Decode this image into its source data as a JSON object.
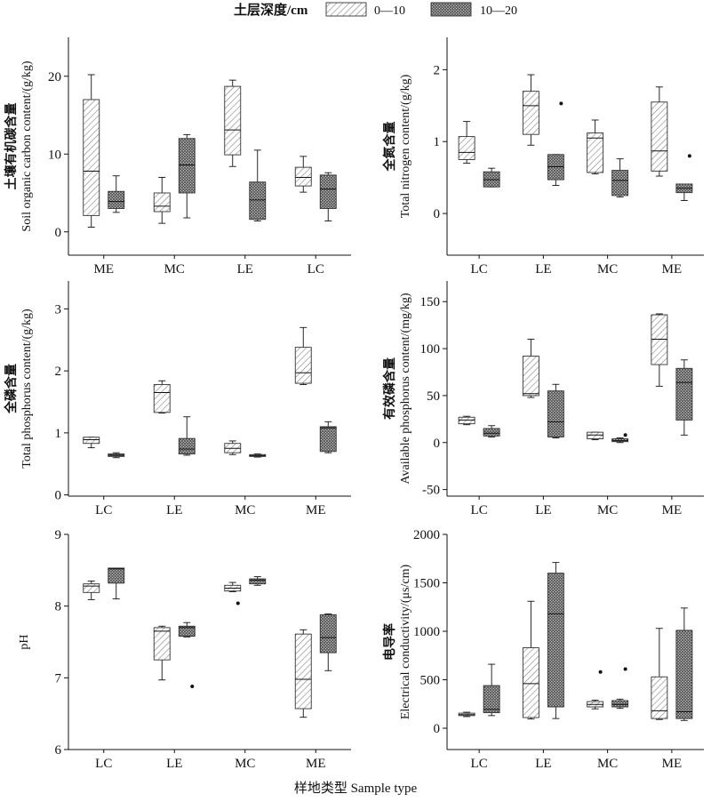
{
  "legend": {
    "title": "土层深度/cm",
    "items": [
      {
        "label": "0—10",
        "pattern": "sparse-hatch"
      },
      {
        "label": "10—20",
        "pattern": "crosshatch"
      }
    ]
  },
  "xlabel": "样地类型 Sample type",
  "chart_data": [
    {
      "type": "box",
      "ylabel_cn": "土壤有机碳含量",
      "ylabel_en": "Soil organic carbon content/(g/kg)",
      "ylim": [
        -3,
        25
      ],
      "yticks": [
        0,
        10,
        20
      ],
      "categories": [
        "ME",
        "MC",
        "LE",
        "LC"
      ],
      "series": [
        {
          "name": "0—10",
          "boxes": [
            {
              "min": 0.6,
              "q1": 2.1,
              "median": 7.8,
              "q3": 17.0,
              "max": 20.2,
              "outliers": []
            },
            {
              "min": 1.1,
              "q1": 2.6,
              "median": 3.3,
              "q3": 5.0,
              "max": 7.0,
              "outliers": []
            },
            {
              "min": 8.4,
              "q1": 9.9,
              "median": 13.1,
              "q3": 18.7,
              "max": 19.5,
              "outliers": []
            },
            {
              "min": 5.1,
              "q1": 5.9,
              "median": 7.0,
              "q3": 8.3,
              "max": 9.7,
              "outliers": []
            }
          ]
        },
        {
          "name": "10—20",
          "boxes": [
            {
              "min": 2.5,
              "q1": 3.0,
              "median": 3.9,
              "q3": 5.2,
              "max": 7.2,
              "outliers": []
            },
            {
              "min": 1.8,
              "q1": 5.0,
              "median": 8.6,
              "q3": 12.0,
              "max": 12.5,
              "outliers": []
            },
            {
              "min": 1.4,
              "q1": 1.6,
              "median": 4.1,
              "q3": 6.4,
              "max": 10.5,
              "outliers": []
            },
            {
              "min": 1.4,
              "q1": 3.0,
              "median": 5.5,
              "q3": 7.3,
              "max": 7.6,
              "outliers": []
            }
          ]
        }
      ]
    },
    {
      "type": "box",
      "ylabel_cn": "全氮含量",
      "ylabel_en": "Total nitrogen content/(g/kg)",
      "ylim": [
        -0.58,
        2.45
      ],
      "yticks": [
        0,
        1,
        2
      ],
      "categories": [
        "LC",
        "LE",
        "MC",
        "ME"
      ],
      "series": [
        {
          "name": "0—10",
          "boxes": [
            {
              "min": 0.7,
              "q1": 0.75,
              "median": 0.85,
              "q3": 1.07,
              "max": 1.28,
              "outliers": []
            },
            {
              "min": 0.95,
              "q1": 1.1,
              "median": 1.5,
              "q3": 1.7,
              "max": 1.93,
              "outliers": []
            },
            {
              "min": 0.55,
              "q1": 0.57,
              "median": 1.05,
              "q3": 1.12,
              "max": 1.3,
              "outliers": []
            },
            {
              "min": 0.52,
              "q1": 0.59,
              "median": 0.87,
              "q3": 1.55,
              "max": 1.76,
              "outliers": []
            }
          ]
        },
        {
          "name": "10—20",
          "boxes": [
            {
              "min": 0.37,
              "q1": 0.37,
              "median": 0.47,
              "q3": 0.58,
              "max": 0.63,
              "outliers": []
            },
            {
              "min": 0.39,
              "q1": 0.47,
              "median": 0.65,
              "q3": 0.82,
              "max": 0.82,
              "outliers": [
                1.53
              ]
            },
            {
              "min": 0.23,
              "q1": 0.25,
              "median": 0.46,
              "q3": 0.6,
              "max": 0.76,
              "outliers": []
            },
            {
              "min": 0.18,
              "q1": 0.29,
              "median": 0.35,
              "q3": 0.41,
              "max": 0.41,
              "outliers": [
                0.8
              ]
            }
          ]
        }
      ]
    },
    {
      "type": "box",
      "ylabel_cn": "全磷含量",
      "ylabel_en": "Total phosphorus content/(g/kg)",
      "ylim": [
        -0.02,
        3.45
      ],
      "yticks": [
        0,
        1,
        2,
        3
      ],
      "categories": [
        "LC",
        "LE",
        "MC",
        "ME"
      ],
      "series": [
        {
          "name": "0—10",
          "boxes": [
            {
              "min": 0.76,
              "q1": 0.83,
              "median": 0.89,
              "q3": 0.93,
              "max": 0.93,
              "outliers": []
            },
            {
              "min": 1.32,
              "q1": 1.33,
              "median": 1.65,
              "q3": 1.78,
              "max": 1.84,
              "outliers": []
            },
            {
              "min": 0.65,
              "q1": 0.68,
              "median": 0.75,
              "q3": 0.83,
              "max": 0.87,
              "outliers": []
            },
            {
              "min": 1.78,
              "q1": 1.8,
              "median": 1.97,
              "q3": 2.38,
              "max": 2.7,
              "outliers": []
            }
          ]
        },
        {
          "name": "10—20",
          "boxes": [
            {
              "min": 0.6,
              "q1": 0.62,
              "median": 0.64,
              "q3": 0.66,
              "max": 0.68,
              "outliers": []
            },
            {
              "min": 0.64,
              "q1": 0.66,
              "median": 0.74,
              "q3": 0.91,
              "max": 1.26,
              "outliers": []
            },
            {
              "min": 0.61,
              "q1": 0.62,
              "median": 0.63,
              "q3": 0.65,
              "max": 0.66,
              "outliers": []
            },
            {
              "min": 0.68,
              "q1": 0.7,
              "median": 1.08,
              "q3": 1.1,
              "max": 1.18,
              "outliers": []
            }
          ]
        }
      ]
    },
    {
      "type": "box",
      "ylabel_cn": "有效磷含量",
      "ylabel_en": "Available phosphorus content/(mg/kg)",
      "ylim": [
        -57,
        172
      ],
      "yticks": [
        -50,
        0,
        50,
        100,
        150
      ],
      "categories": [
        "LC",
        "LE",
        "MC",
        "ME"
      ],
      "series": [
        {
          "name": "0—10",
          "boxes": [
            {
              "min": 19,
              "q1": 20,
              "median": 24,
              "q3": 27,
              "max": 28,
              "outliers": []
            },
            {
              "min": 48,
              "q1": 50,
              "median": 52,
              "q3": 92,
              "max": 110,
              "outliers": []
            },
            {
              "min": 3,
              "q1": 4,
              "median": 8,
              "q3": 11,
              "max": 11,
              "outliers": []
            },
            {
              "min": 60,
              "q1": 83,
              "median": 110,
              "q3": 136,
              "max": 137,
              "outliers": []
            }
          ]
        },
        {
          "name": "10—20",
          "boxes": [
            {
              "min": 6,
              "q1": 7,
              "median": 10,
              "q3": 15,
              "max": 18,
              "outliers": []
            },
            {
              "min": 5,
              "q1": 6,
              "median": 22,
              "q3": 55,
              "max": 62,
              "outliers": []
            },
            {
              "min": 0,
              "q1": 1,
              "median": 2,
              "q3": 4,
              "max": 5,
              "outliers": [
                8
              ]
            },
            {
              "min": 8,
              "q1": 24,
              "median": 64,
              "q3": 79,
              "max": 88,
              "outliers": []
            }
          ]
        }
      ]
    },
    {
      "type": "box",
      "ylabel_cn": "",
      "ylabel_en": "pH",
      "ylim": [
        6,
        9
      ],
      "yticks": [
        6,
        7,
        8,
        9
      ],
      "categories": [
        "LC",
        "LE",
        "MC",
        "ME"
      ],
      "series": [
        {
          "name": "0—10",
          "boxes": [
            {
              "min": 8.09,
              "q1": 8.19,
              "median": 8.28,
              "q3": 8.31,
              "max": 8.35,
              "outliers": []
            },
            {
              "min": 6.97,
              "q1": 7.25,
              "median": 7.65,
              "q3": 7.7,
              "max": 7.72,
              "outliers": []
            },
            {
              "min": 8.2,
              "q1": 8.21,
              "median": 8.25,
              "q3": 8.29,
              "max": 8.33,
              "outliers": [
                8.04
              ]
            },
            {
              "min": 6.45,
              "q1": 6.57,
              "median": 6.98,
              "q3": 7.61,
              "max": 7.67,
              "outliers": []
            }
          ]
        },
        {
          "name": "10—20",
          "boxes": [
            {
              "min": 8.1,
              "q1": 8.32,
              "median": 8.52,
              "q3": 8.53,
              "max": 8.53,
              "outliers": []
            },
            {
              "min": 7.57,
              "q1": 7.58,
              "median": 7.7,
              "q3": 7.72,
              "max": 7.77,
              "outliers": [
                6.88
              ]
            },
            {
              "min": 8.29,
              "q1": 8.31,
              "median": 8.36,
              "q3": 8.38,
              "max": 8.41,
              "outliers": []
            },
            {
              "min": 7.1,
              "q1": 7.35,
              "median": 7.56,
              "q3": 7.88,
              "max": 7.89,
              "outliers": []
            }
          ]
        }
      ]
    },
    {
      "type": "box",
      "ylabel_cn": "电导率",
      "ylabel_en": "Electrical conductivity/(μs/cm)",
      "ylim": [
        -220,
        2000
      ],
      "yticks": [
        0,
        500,
        1000,
        1500,
        2000
      ],
      "categories": [
        "LC",
        "LE",
        "MC",
        "ME"
      ],
      "series": [
        {
          "name": "0—10",
          "boxes": [
            {
              "min": 120,
              "q1": 130,
              "median": 140,
              "q3": 155,
              "max": 165,
              "outliers": []
            },
            {
              "min": 95,
              "q1": 110,
              "median": 460,
              "q3": 830,
              "max": 1310,
              "outliers": []
            },
            {
              "min": 200,
              "q1": 220,
              "median": 245,
              "q3": 275,
              "max": 290,
              "outliers": [
                580
              ]
            },
            {
              "min": 90,
              "q1": 100,
              "median": 180,
              "q3": 530,
              "max": 1030,
              "outliers": []
            }
          ]
        },
        {
          "name": "10—20",
          "boxes": [
            {
              "min": 130,
              "q1": 160,
              "median": 195,
              "q3": 440,
              "max": 660,
              "outliers": []
            },
            {
              "min": 100,
              "q1": 220,
              "median": 1180,
              "q3": 1600,
              "max": 1710,
              "outliers": []
            },
            {
              "min": 205,
              "q1": 220,
              "median": 245,
              "q3": 285,
              "max": 300,
              "outliers": [
                610
              ]
            },
            {
              "min": 80,
              "q1": 100,
              "median": 170,
              "q3": 1010,
              "max": 1240,
              "outliers": []
            }
          ]
        }
      ]
    }
  ]
}
